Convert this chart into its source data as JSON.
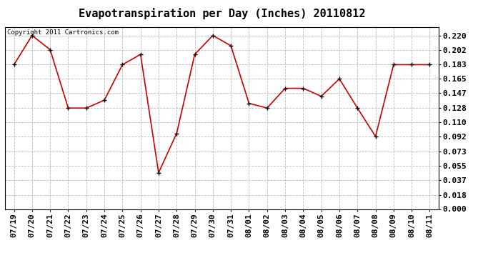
{
  "title": "Evapotranspiration per Day (Inches) 20110812",
  "copyright_text": "Copyright 2011 Cartronics.com",
  "dates": [
    "07/19",
    "07/20",
    "07/21",
    "07/22",
    "07/23",
    "07/24",
    "07/25",
    "07/26",
    "07/27",
    "07/28",
    "07/29",
    "07/30",
    "07/31",
    "08/01",
    "08/02",
    "08/03",
    "08/04",
    "08/05",
    "08/06",
    "08/07",
    "08/08",
    "08/09",
    "08/10",
    "08/11"
  ],
  "values": [
    0.183,
    0.22,
    0.202,
    0.128,
    0.128,
    0.138,
    0.183,
    0.196,
    0.046,
    0.096,
    0.196,
    0.22,
    0.207,
    0.134,
    0.128,
    0.153,
    0.153,
    0.143,
    0.165,
    0.128,
    0.092,
    0.183,
    0.183,
    0.183
  ],
  "line_color": "#cc0000",
  "marker_color": "#000000",
  "background_color": "#ffffff",
  "plot_bg_color": "#ffffff",
  "grid_color": "#bbbbbb",
  "yticks": [
    0.0,
    0.018,
    0.037,
    0.055,
    0.073,
    0.092,
    0.11,
    0.128,
    0.147,
    0.165,
    0.183,
    0.202,
    0.22
  ],
  "ylim": [
    0.0,
    0.231
  ],
  "title_fontsize": 11,
  "tick_fontsize": 8,
  "copyright_fontsize": 6.5
}
